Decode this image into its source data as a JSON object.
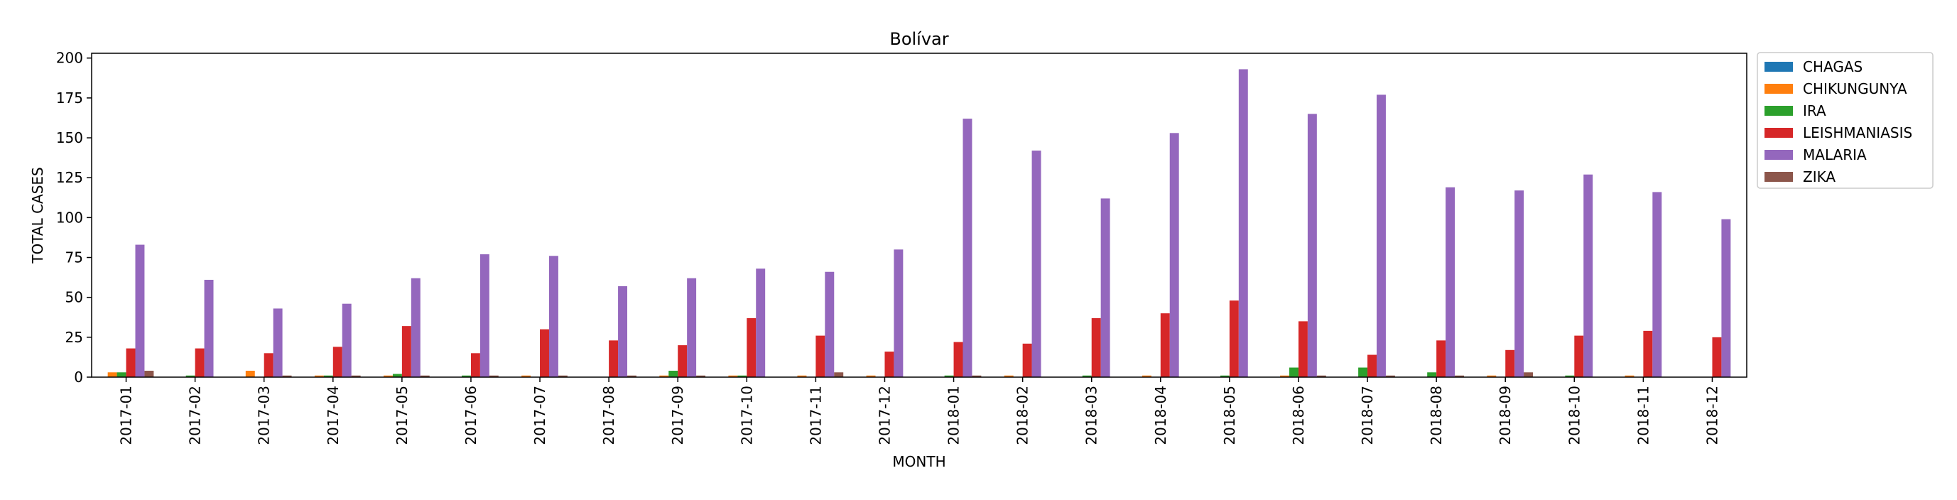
{
  "chart_data": {
    "type": "bar",
    "title": "Bolívar",
    "xlabel": "MONTH",
    "ylabel": "TOTAL CASES",
    "ylim": [
      0,
      203
    ],
    "yticks": [
      "0",
      "25",
      "50",
      "75",
      "100",
      "125",
      "150",
      "175",
      "200"
    ],
    "legend_position": "outside-top-right",
    "grid": false,
    "categories": [
      "2017-01",
      "2017-02",
      "2017-03",
      "2017-04",
      "2017-05",
      "2017-06",
      "2017-07",
      "2017-08",
      "2017-09",
      "2017-10",
      "2017-11",
      "2017-12",
      "2018-01",
      "2018-02",
      "2018-03",
      "2018-04",
      "2018-05",
      "2018-06",
      "2018-07",
      "2018-08",
      "2018-09",
      "2018-10",
      "2018-11",
      "2018-12"
    ],
    "series": [
      {
        "name": "CHAGAS",
        "color": "#1f77b4",
        "values": [
          0,
          0,
          0,
          0,
          0,
          0,
          0,
          0,
          0,
          0,
          0,
          0,
          0,
          0,
          0,
          0,
          0,
          0,
          0,
          0,
          0,
          0,
          0,
          0
        ]
      },
      {
        "name": "CHIKUNGUNYA",
        "color": "#ff7f0e",
        "values": [
          3,
          0,
          4,
          1,
          1,
          0,
          1,
          0,
          1,
          1,
          1,
          1,
          0,
          1,
          0,
          1,
          0,
          1,
          0,
          0,
          1,
          0,
          1,
          0
        ]
      },
      {
        "name": "IRA",
        "color": "#2ca02c",
        "values": [
          3,
          1,
          0,
          1,
          2,
          1,
          0,
          0,
          4,
          1,
          0,
          0,
          1,
          0,
          1,
          0,
          1,
          6,
          6,
          3,
          0,
          1,
          0,
          0
        ]
      },
      {
        "name": "LEISHMANIASIS",
        "color": "#d62728",
        "values": [
          18,
          18,
          15,
          19,
          32,
          15,
          30,
          23,
          20,
          37,
          26,
          16,
          22,
          21,
          37,
          40,
          48,
          35,
          14,
          23,
          17,
          26,
          29,
          25
        ]
      },
      {
        "name": "MALARIA",
        "color": "#9467bd",
        "values": [
          83,
          61,
          43,
          46,
          62,
          77,
          76,
          57,
          62,
          68,
          66,
          80,
          162,
          142,
          112,
          153,
          193,
          165,
          177,
          119,
          117,
          127,
          116,
          99
        ]
      },
      {
        "name": "ZIKA",
        "color": "#8c564b",
        "values": [
          4,
          0,
          1,
          1,
          1,
          1,
          1,
          1,
          1,
          0,
          3,
          0,
          1,
          0,
          0,
          0,
          0,
          1,
          1,
          1,
          3,
          0,
          0,
          0
        ]
      }
    ]
  }
}
